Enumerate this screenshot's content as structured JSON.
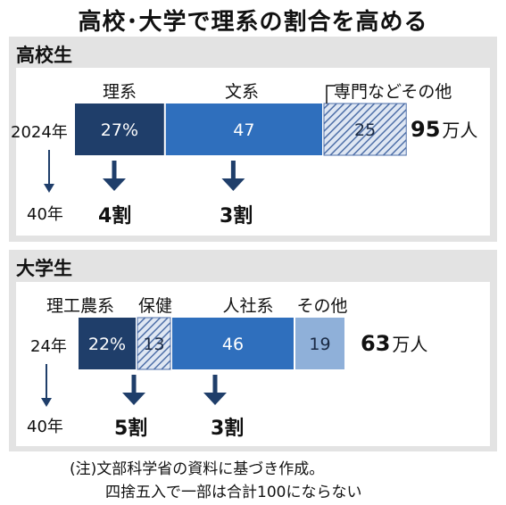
{
  "title": "高校･大学で理系の割合を高める",
  "colors": {
    "dark": "#1f3e6a",
    "mid": "#2f6fbd",
    "hatch": "#6a86b8",
    "light": "#8fb0d9",
    "panel": "#e3e3e3"
  },
  "chart_data": [
    {
      "type": "bar",
      "title": "高校生",
      "years": [
        "2024年",
        "40年"
      ],
      "categories": [
        "理系",
        "文系",
        "専門などその他"
      ],
      "values": [
        27,
        47,
        25
      ],
      "value_labels": [
        "27%",
        "47",
        "25"
      ],
      "total_value": 95,
      "total_unit": "万人",
      "targets": [
        "4割",
        "3割"
      ]
    },
    {
      "type": "bar",
      "title": "大学生",
      "years": [
        "24年",
        "40年"
      ],
      "categories": [
        "理工農系",
        "保健",
        "人社系",
        "その他"
      ],
      "values": [
        22,
        13,
        46,
        19
      ],
      "value_labels": [
        "22%",
        "13",
        "46",
        "19"
      ],
      "total_value": 63,
      "total_unit": "万人",
      "targets": [
        "5割",
        "3割"
      ]
    }
  ],
  "note": {
    "line1": "(注)文部科学省の資料に基づき作成。",
    "line2": "四捨五入で一部は合計100にならない"
  }
}
